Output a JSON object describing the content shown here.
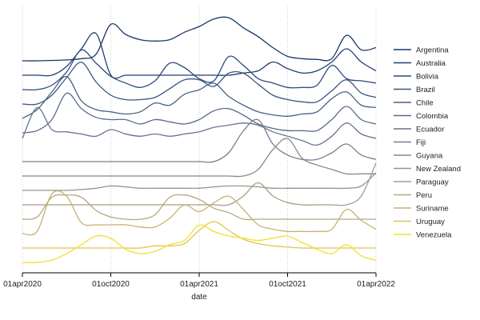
{
  "chart_data": {
    "type": "line",
    "subtype": "ridgeline",
    "xlabel": "date",
    "ylabel": "",
    "title": "",
    "x_ticks": [
      "01apr2020",
      "01oct2020",
      "01apr2021",
      "01oct2021",
      "01apr2022"
    ],
    "x_range": [
      "01apr2020",
      "01apr2022"
    ],
    "grid": "vertical dotted at x ticks",
    "legend": "right",
    "value_unit": "relative height (0-1)",
    "x": [
      "Apr20",
      "May20",
      "Jun20",
      "Jul20",
      "Aug20",
      "Sep20",
      "Oct20",
      "Nov20",
      "Dec20",
      "Jan21",
      "Feb21",
      "Mar21",
      "Apr21",
      "May21",
      "Jun21",
      "Jul21",
      "Aug21",
      "Sep21",
      "Oct21",
      "Nov21",
      "Dec21",
      "Jan22",
      "Feb22",
      "Mar22",
      "Apr22"
    ],
    "series": [
      {
        "name": "Argentina",
        "color": "#1b3668",
        "values": [
          0.0,
          0.0,
          0.01,
          0.02,
          0.05,
          0.15,
          0.83,
          0.6,
          0.48,
          0.45,
          0.48,
          0.65,
          0.78,
          0.95,
          0.98,
          0.75,
          0.55,
          0.3,
          0.1,
          0.05,
          0.03,
          0.05,
          0.58,
          0.25,
          0.3
        ]
      },
      {
        "name": "Australia",
        "color": "#223f72",
        "values": [
          0.0,
          0.0,
          0.0,
          0.2,
          0.6,
          0.95,
          0.0,
          0.0,
          0.0,
          0.0,
          0.0,
          0.0,
          0.0,
          0.0,
          0.0,
          0.05,
          0.1,
          0.3,
          0.15,
          0.05,
          0.1,
          0.3,
          0.6,
          0.3,
          0.1
        ]
      },
      {
        "name": "Bolivia",
        "color": "#2c4a7c",
        "values": [
          0.0,
          0.0,
          0.1,
          0.4,
          0.9,
          0.6,
          0.3,
          0.15,
          0.05,
          0.2,
          0.6,
          0.5,
          0.25,
          0.2,
          0.75,
          0.55,
          0.25,
          0.15,
          0.05,
          0.05,
          0.1,
          0.55,
          0.25,
          0.2,
          0.15
        ]
      },
      {
        "name": "Brazil",
        "color": "#3a5482",
        "values": [
          0.0,
          0.0,
          0.2,
          0.6,
          0.95,
          0.5,
          0.2,
          0.1,
          0.1,
          0.15,
          0.35,
          0.55,
          0.55,
          0.4,
          0.7,
          0.7,
          0.45,
          0.2,
          0.1,
          0.05,
          0.05,
          0.3,
          0.55,
          0.25,
          0.15
        ]
      },
      {
        "name": "Chile",
        "color": "#485f86",
        "values": [
          0.0,
          0.2,
          0.6,
          0.95,
          0.4,
          0.2,
          0.15,
          0.1,
          0.15,
          0.35,
          0.3,
          0.55,
          0.65,
          0.8,
          0.5,
          0.3,
          0.15,
          0.08,
          0.05,
          0.1,
          0.15,
          0.45,
          0.6,
          0.3,
          0.25
        ]
      },
      {
        "name": "Colombia",
        "color": "#586a8a",
        "values": [
          0.0,
          0.05,
          0.3,
          0.9,
          0.55,
          0.35,
          0.3,
          0.3,
          0.2,
          0.3,
          0.25,
          0.2,
          0.3,
          0.5,
          0.55,
          0.4,
          0.2,
          0.1,
          0.05,
          0.05,
          0.05,
          0.3,
          0.6,
          0.3,
          0.2
        ]
      },
      {
        "name": "Ecuador",
        "color": "#67758d",
        "values": [
          0.2,
          0.9,
          0.4,
          0.35,
          0.3,
          0.25,
          0.4,
          0.3,
          0.25,
          0.3,
          0.25,
          0.3,
          0.35,
          0.45,
          0.5,
          0.55,
          0.5,
          0.35,
          0.25,
          0.15,
          0.05,
          0.25,
          0.55,
          0.3,
          0.2
        ]
      },
      {
        "name": "Fiji",
        "color": "#76808f",
        "values": [
          0.0,
          0.0,
          0.0,
          0.0,
          0.0,
          0.0,
          0.0,
          0.0,
          0.0,
          0.0,
          0.0,
          0.0,
          0.0,
          0.0,
          0.2,
          0.7,
          0.95,
          0.4,
          0.15,
          0.05,
          0.05,
          0.2,
          0.4,
          0.15,
          0.05
        ]
      },
      {
        "name": "Guyana",
        "color": "#858b8f",
        "values": [
          0.0,
          0.0,
          0.0,
          0.0,
          0.0,
          0.0,
          0.0,
          0.0,
          0.0,
          0.0,
          0.0,
          0.0,
          0.0,
          0.0,
          0.0,
          0.0,
          0.15,
          0.6,
          0.85,
          0.4,
          0.25,
          0.15,
          0.05,
          0.05,
          0.05
        ]
      },
      {
        "name": "New Zealand",
        "color": "#94958d",
        "values": [
          0.0,
          0.0,
          0.0,
          0.0,
          0.02,
          0.05,
          0.1,
          0.08,
          0.05,
          0.05,
          0.05,
          0.05,
          0.05,
          0.08,
          0.1,
          0.1,
          0.08,
          0.05,
          0.05,
          0.05,
          0.05,
          0.05,
          0.05,
          0.1,
          0.4
        ]
      },
      {
        "name": "Paraguay",
        "color": "#a49f88",
        "values": [
          0.0,
          0.0,
          0.0,
          0.0,
          0.0,
          0.0,
          0.0,
          0.0,
          0.0,
          0.0,
          0.0,
          0.0,
          0.0,
          0.0,
          0.0,
          0.2,
          0.5,
          0.2,
          0.05,
          0.0,
          0.0,
          0.0,
          0.0,
          0.2,
          0.95
        ]
      },
      {
        "name": "Peru",
        "color": "#b4a97f",
        "values": [
          0.0,
          0.05,
          0.5,
          0.55,
          0.5,
          0.2,
          0.05,
          0.0,
          0.0,
          0.1,
          0.5,
          0.55,
          0.45,
          0.25,
          0.15,
          0.0,
          0.0,
          0.0,
          0.0,
          0.0,
          0.0,
          0.0,
          0.0,
          0.0,
          0.0
        ]
      },
      {
        "name": "Suriname",
        "color": "#c5b374",
        "values": [
          0.0,
          0.05,
          0.9,
          0.85,
          0.25,
          0.2,
          0.2,
          0.2,
          0.15,
          0.15,
          0.35,
          0.65,
          0.5,
          0.7,
          0.85,
          0.55,
          0.2,
          0.1,
          0.05,
          0.05,
          0.05,
          0.1,
          0.55,
          0.3,
          0.1
        ]
      },
      {
        "name": "Uruguay",
        "color": "#dfc550",
        "values": [
          0.0,
          0.0,
          0.0,
          0.0,
          0.0,
          0.0,
          0.0,
          0.0,
          0.0,
          0.05,
          0.05,
          0.1,
          0.4,
          0.6,
          0.4,
          0.2,
          0.1,
          0.05,
          0.02,
          0.0,
          0.0,
          0.0,
          0.0,
          0.0,
          0.0
        ]
      },
      {
        "name": "Venezuela",
        "color": "#f4df2c",
        "values": [
          0.0,
          0.0,
          0.05,
          0.2,
          0.4,
          0.6,
          0.55,
          0.3,
          0.2,
          0.25,
          0.4,
          0.5,
          0.85,
          0.7,
          0.6,
          0.55,
          0.5,
          0.55,
          0.6,
          0.45,
          0.3,
          0.2,
          0.4,
          0.15,
          0.05
        ]
      }
    ]
  }
}
